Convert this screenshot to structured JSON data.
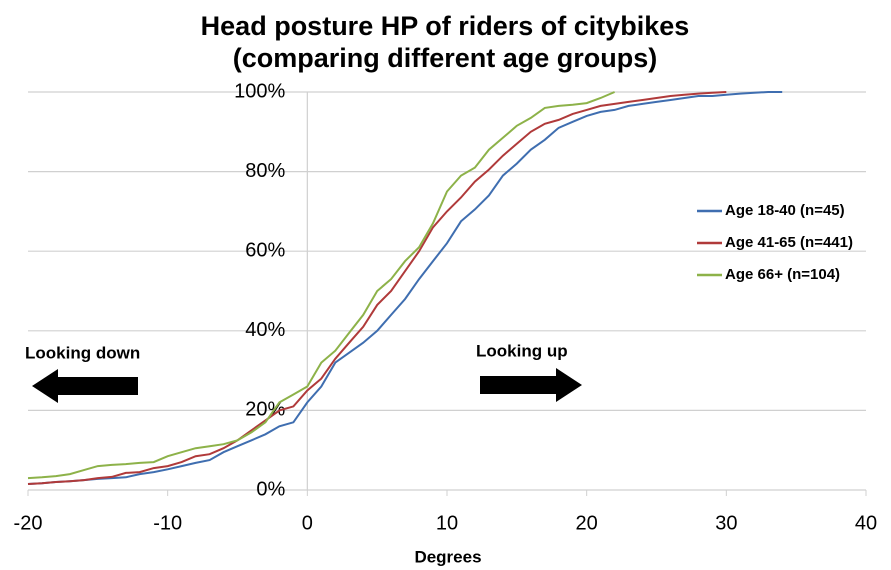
{
  "chart_data": {
    "type": "line",
    "title": "Head posture HP of riders of citybikes",
    "subtitle": "(comparing different age groups)",
    "xlabel": "Degrees",
    "annotations": [
      "Looking down",
      "Looking up"
    ],
    "x": [
      -20,
      -19,
      -18,
      -17,
      -16,
      -15,
      -14,
      -13,
      -12,
      -11,
      -10,
      -9,
      -8,
      -7,
      -6,
      -5,
      -4,
      -3,
      -2,
      -1,
      0,
      1,
      2,
      3,
      4,
      5,
      6,
      7,
      8,
      9,
      10,
      11,
      12,
      13,
      14,
      15,
      16,
      17,
      18,
      19,
      20,
      21,
      22,
      23,
      24,
      25,
      26,
      27,
      28,
      29,
      30,
      31,
      32,
      33,
      34
    ],
    "series": [
      {
        "name": "Age 18-40 (n=45)",
        "color": "#3f6eb0",
        "values": [
          1.5,
          1.7,
          2,
          2.2,
          2.5,
          2.8,
          3,
          3.2,
          4,
          4.5,
          5.2,
          6,
          6.8,
          7.5,
          9.5,
          11,
          12.5,
          14,
          16,
          17,
          22,
          26,
          32,
          34.5,
          37,
          40,
          44,
          48,
          53,
          57.5,
          62,
          67.5,
          70.5,
          74,
          79,
          82,
          85.5,
          88,
          91,
          92.5,
          94,
          95,
          95.5,
          96.5,
          97,
          97.5,
          98,
          98.5,
          99,
          99,
          99.3,
          99.6,
          99.8,
          100,
          100
        ]
      },
      {
        "name": "Age 41-65 (n=441)",
        "color": "#b03a3a",
        "values": [
          1.5,
          1.7,
          2,
          2.2,
          2.5,
          3,
          3.3,
          4.3,
          4.5,
          5.5,
          6,
          7,
          8.5,
          9,
          10.5,
          12.5,
          15,
          17.5,
          20,
          21,
          25,
          28,
          33,
          37,
          41,
          46.5,
          50,
          55,
          60,
          66,
          70,
          73.5,
          77.5,
          80.5,
          84,
          87,
          90,
          92,
          93,
          94.5,
          95.5,
          96.5,
          97,
          97.5,
          98,
          98.5,
          99,
          99.3,
          99.6,
          99.8,
          100,
          null,
          null,
          null,
          null
        ]
      },
      {
        "name": "Age 66+ (n=104)",
        "color": "#8db249",
        "values": [
          3,
          3.2,
          3.5,
          4,
          5,
          6,
          6.3,
          6.5,
          6.8,
          7,
          8.5,
          9.5,
          10.5,
          11,
          11.5,
          12.5,
          14.5,
          17,
          22,
          24,
          26,
          32,
          35,
          39.5,
          44,
          50,
          53,
          57.5,
          61,
          67,
          75,
          79,
          81,
          85.5,
          88.5,
          91.5,
          93.5,
          96,
          96.5,
          96.8,
          97.2,
          98.5,
          100,
          null,
          null,
          null,
          null,
          null,
          null,
          null,
          null,
          null,
          null,
          null,
          null
        ]
      }
    ],
    "xlim": [
      -20,
      40
    ],
    "xticks": [
      -20,
      -10,
      0,
      10,
      20,
      30,
      40
    ],
    "ylim": [
      0,
      100
    ],
    "yticks": [
      {
        "value": 0,
        "label": "0%"
      },
      {
        "value": 20,
        "label": "20%"
      },
      {
        "value": 40,
        "label": "40%"
      },
      {
        "value": 60,
        "label": "60%"
      },
      {
        "value": 80,
        "label": "80%"
      },
      {
        "value": 100,
        "label": "100%"
      }
    ],
    "grid": true,
    "legend": "right"
  }
}
